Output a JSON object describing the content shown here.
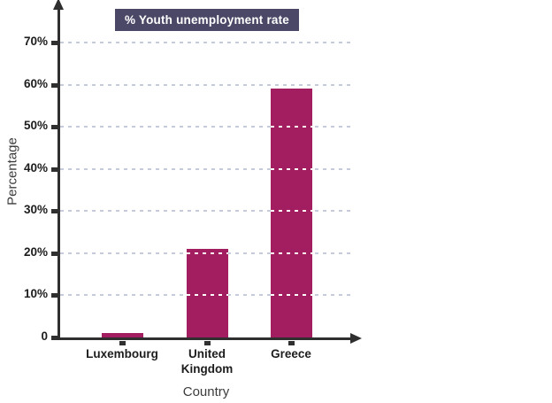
{
  "legend": {
    "label": "% Youth unemployment rate"
  },
  "colors": {
    "bar": "#a21e61",
    "legend_bg": "#4a4866",
    "grid": "#c5cbdb",
    "axis": "#2f2f2f",
    "tick_label": "#1d1d1d",
    "axis_title": "#3c3c3c"
  },
  "chart_data": {
    "type": "bar",
    "title": "% Youth unemployment rate",
    "categories": [
      "Luxembourg",
      "United Kingdom",
      "Greece"
    ],
    "values": [
      1,
      21,
      59
    ],
    "xlabel": "Country",
    "ylabel": "Percentage",
    "ylim": [
      0,
      70
    ],
    "ytick_step": 10,
    "ytick_labels": [
      "0",
      "10%",
      "20%",
      "30%",
      "40%",
      "50%",
      "60%",
      "70%"
    ],
    "grid": "horizontal-dashed",
    "legend_position": "top",
    "bar_color": "#a21e61"
  }
}
